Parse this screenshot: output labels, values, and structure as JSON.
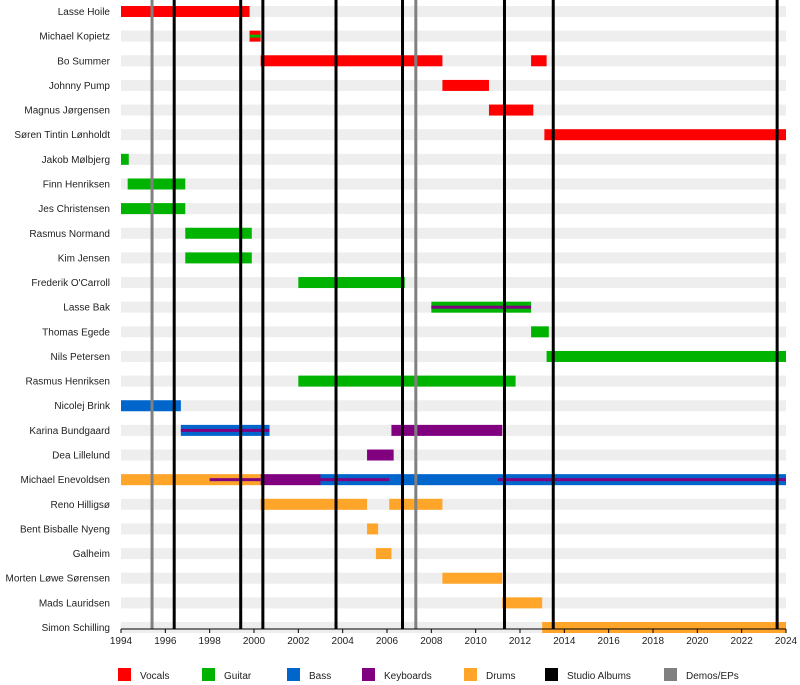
{
  "chart_data": {
    "type": "timeline",
    "x_range": [
      1994,
      2024
    ],
    "x_ticks": [
      1994,
      1996,
      1998,
      2000,
      2002,
      2004,
      2006,
      2008,
      2010,
      2012,
      2014,
      2016,
      2018,
      2020,
      2022,
      2024
    ],
    "grid": true,
    "members": [
      {
        "name": "Lasse Hoile",
        "bars": [
          {
            "role": "Vocals",
            "start": 1994.0,
            "end": 1999.8
          }
        ]
      },
      {
        "name": "Michael Kopietz",
        "bars": [
          {
            "role": "Vocals",
            "start": 1999.8,
            "end": 2000.3,
            "secondary": "Guitar"
          }
        ]
      },
      {
        "name": "Bo Summer",
        "bars": [
          {
            "role": "Vocals",
            "start": 2000.3,
            "end": 2008.5
          },
          {
            "role": "Vocals",
            "start": 2012.5,
            "end": 2013.2
          }
        ]
      },
      {
        "name": "Johnny Pump",
        "bars": [
          {
            "role": "Vocals",
            "start": 2008.5,
            "end": 2010.6
          }
        ]
      },
      {
        "name": "Magnus Jørgensen",
        "bars": [
          {
            "role": "Vocals",
            "start": 2010.6,
            "end": 2012.6
          }
        ]
      },
      {
        "name": "Søren Tintin Lønholdt",
        "bars": [
          {
            "role": "Vocals",
            "start": 2013.1,
            "end": 2024.0
          }
        ]
      },
      {
        "name": "Jakob Mølbjerg",
        "bars": [
          {
            "role": "Guitar",
            "start": 1994.0,
            "end": 1994.35
          }
        ]
      },
      {
        "name": "Finn Henriksen",
        "bars": [
          {
            "role": "Guitar",
            "start": 1994.3,
            "end": 1996.9
          }
        ]
      },
      {
        "name": "Jes Christensen",
        "bars": [
          {
            "role": "Guitar",
            "start": 1994.0,
            "end": 1996.9
          }
        ]
      },
      {
        "name": "Rasmus Normand",
        "bars": [
          {
            "role": "Guitar",
            "start": 1996.9,
            "end": 1999.9
          }
        ]
      },
      {
        "name": "Kim Jensen",
        "bars": [
          {
            "role": "Guitar",
            "start": 1996.9,
            "end": 1999.9
          }
        ]
      },
      {
        "name": "Frederik O'Carroll",
        "bars": [
          {
            "role": "Guitar",
            "start": 2002.0,
            "end": 2006.8
          }
        ]
      },
      {
        "name": "Lasse Bak",
        "bars": [
          {
            "role": "Guitar",
            "start": 2008.0,
            "end": 2012.5,
            "secondary": "Keyboards"
          }
        ]
      },
      {
        "name": "Thomas Egede",
        "bars": [
          {
            "role": "Guitar",
            "start": 2012.5,
            "end": 2013.3
          }
        ]
      },
      {
        "name": "Nils Petersen",
        "bars": [
          {
            "role": "Guitar",
            "start": 2013.2,
            "end": 2024.0
          }
        ]
      },
      {
        "name": "Rasmus Henriksen",
        "bars": [
          {
            "role": "Guitar",
            "start": 2002.0,
            "end": 2011.8
          }
        ]
      },
      {
        "name": "Nicolej Brink",
        "bars": [
          {
            "role": "Bass",
            "start": 1994.0,
            "end": 1996.7
          }
        ]
      },
      {
        "name": "Karina Bundgaard",
        "bars": [
          {
            "role": "Bass",
            "start": 1996.7,
            "end": 2000.7,
            "secondary": "Keyboards"
          },
          {
            "role": "Keyboards",
            "start": 2006.2,
            "end": 2011.2
          }
        ]
      },
      {
        "name": "Dea Lillelund",
        "bars": [
          {
            "role": "Keyboards",
            "start": 2005.1,
            "end": 2006.3
          }
        ]
      },
      {
        "name": "Michael Enevoldsen",
        "bars": [
          {
            "role": "Drums",
            "start": 1994.0,
            "end": 2000.3
          },
          {
            "role": "Keyboards",
            "start": 2000.3,
            "end": 2003.0
          },
          {
            "role": "Bass",
            "start": 2003.0,
            "end": 2024.0
          },
          {
            "role": "Keyboards",
            "start": 1998.0,
            "end": 2000.3,
            "thin": true
          },
          {
            "role": "Keyboards",
            "start": 2003.0,
            "end": 2006.1,
            "thin": true
          },
          {
            "role": "Keyboards",
            "start": 2011.0,
            "end": 2024.0,
            "thin": true
          }
        ]
      },
      {
        "name": "Reno Hilligsø",
        "bars": [
          {
            "role": "Drums",
            "start": 2000.3,
            "end": 2005.1
          },
          {
            "role": "Drums",
            "start": 2006.1,
            "end": 2008.5
          }
        ]
      },
      {
        "name": "Bent Bisballe Nyeng",
        "bars": [
          {
            "role": "Drums",
            "start": 2005.1,
            "end": 2005.6
          }
        ]
      },
      {
        "name": "Galheim",
        "bars": [
          {
            "role": "Drums",
            "start": 2005.5,
            "end": 2006.2
          }
        ]
      },
      {
        "name": "Morten Løwe Sørensen",
        "bars": [
          {
            "role": "Drums",
            "start": 2008.5,
            "end": 2011.2
          }
        ]
      },
      {
        "name": "Mads Lauridsen",
        "bars": [
          {
            "role": "Drums",
            "start": 2011.2,
            "end": 2013.0
          }
        ]
      },
      {
        "name": "Simon Schilling",
        "bars": [
          {
            "role": "Drums",
            "start": 2013.0,
            "end": 2024.0
          }
        ]
      }
    ],
    "studio_albums": [
      1996.4,
      1999.4,
      2000.4,
      2003.7,
      2006.7,
      2011.3,
      2013.5,
      2023.6
    ],
    "demos_eps": [
      1995.4,
      2007.3
    ],
    "legend": [
      {
        "label": "Vocals",
        "color": "#ff0000"
      },
      {
        "label": "Guitar",
        "color": "#00b300"
      },
      {
        "label": "Bass",
        "color": "#0066cc"
      },
      {
        "label": "Keyboards",
        "color": "#800080"
      },
      {
        "label": "Drums",
        "color": "#ffa52a"
      },
      {
        "label": "Studio Albums",
        "color": "#000000"
      },
      {
        "label": "Demos/EPs",
        "color": "#808080"
      }
    ],
    "legend_position": "bottom"
  }
}
